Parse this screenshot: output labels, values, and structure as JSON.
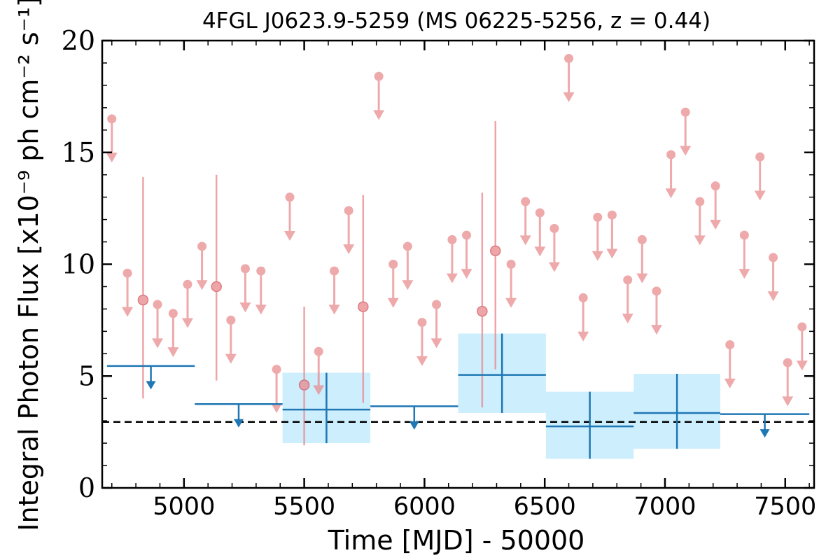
{
  "chart_data": {
    "type": "scatter",
    "title": "4FGL J0623.9-5259 (MS 06225-5256, z = 0.44)",
    "xlabel": "Time [MJD] - 50000",
    "ylabel": "Integral Photon Flux [x10⁻⁹ ph cm⁻² s⁻¹]",
    "xlim": [
      4660,
      7620
    ],
    "ylim": [
      0,
      20
    ],
    "x_ticks": [
      5000,
      5500,
      6000,
      6500,
      7000,
      7500
    ],
    "y_ticks": [
      0,
      5,
      10,
      15,
      20
    ],
    "reference_line": 2.95,
    "colors": {
      "short_bins": "#e8888c",
      "long_bins": "#1f77b4",
      "long_bins_band": "#cdeefd",
      "reference": "#000000"
    },
    "short_bin_upper_limits": [
      {
        "x": 4700,
        "y": 16.5
      },
      {
        "x": 4765,
        "y": 9.6
      },
      {
        "x": 4890,
        "y": 8.2
      },
      {
        "x": 4955,
        "y": 7.8
      },
      {
        "x": 5015,
        "y": 9.1
      },
      {
        "x": 5075,
        "y": 10.8
      },
      {
        "x": 5195,
        "y": 7.5
      },
      {
        "x": 5255,
        "y": 9.8
      },
      {
        "x": 5320,
        "y": 9.7
      },
      {
        "x": 5385,
        "y": 5.3
      },
      {
        "x": 5440,
        "y": 13.0
      },
      {
        "x": 5560,
        "y": 6.1
      },
      {
        "x": 5625,
        "y": 9.7
      },
      {
        "x": 5685,
        "y": 12.4
      },
      {
        "x": 5810,
        "y": 18.4
      },
      {
        "x": 5870,
        "y": 10.0
      },
      {
        "x": 5930,
        "y": 10.8
      },
      {
        "x": 5990,
        "y": 7.4
      },
      {
        "x": 6050,
        "y": 8.2
      },
      {
        "x": 6115,
        "y": 11.1
      },
      {
        "x": 6175,
        "y": 11.3
      },
      {
        "x": 6360,
        "y": 10.0
      },
      {
        "x": 6420,
        "y": 12.8
      },
      {
        "x": 6480,
        "y": 12.3
      },
      {
        "x": 6540,
        "y": 11.6
      },
      {
        "x": 6600,
        "y": 19.2
      },
      {
        "x": 6660,
        "y": 8.5
      },
      {
        "x": 6720,
        "y": 12.1
      },
      {
        "x": 6780,
        "y": 12.2
      },
      {
        "x": 6845,
        "y": 9.3
      },
      {
        "x": 6905,
        "y": 11.1
      },
      {
        "x": 6965,
        "y": 8.8
      },
      {
        "x": 7025,
        "y": 14.9
      },
      {
        "x": 7085,
        "y": 16.8
      },
      {
        "x": 7145,
        "y": 12.8
      },
      {
        "x": 7210,
        "y": 13.5
      },
      {
        "x": 7270,
        "y": 6.4
      },
      {
        "x": 7330,
        "y": 11.3
      },
      {
        "x": 7395,
        "y": 14.8
      },
      {
        "x": 7450,
        "y": 10.3
      },
      {
        "x": 7510,
        "y": 5.6
      },
      {
        "x": 7570,
        "y": 7.2
      }
    ],
    "short_bin_detections": [
      {
        "x": 4830,
        "y": 8.4,
        "y_low": 4.0,
        "y_high": 13.9
      },
      {
        "x": 5135,
        "y": 9.0,
        "y_low": 4.8,
        "y_high": 14.0
      },
      {
        "x": 5500,
        "y": 4.6,
        "y_low": 1.9,
        "y_high": 8.1
      },
      {
        "x": 5745,
        "y": 8.1,
        "y_low": 3.8,
        "y_high": 13.1
      },
      {
        "x": 6240,
        "y": 7.9,
        "y_low": 3.6,
        "y_high": 13.2
      },
      {
        "x": 6295,
        "y": 10.6,
        "y_low": 5.3,
        "y_high": 16.4
      }
    ],
    "long_bin_upper_limits": [
      {
        "x_start": 4680,
        "x_end": 5045,
        "y": 5.45
      },
      {
        "x_start": 5045,
        "x_end": 5410,
        "y": 3.75
      },
      {
        "x_start": 5775,
        "x_end": 6140,
        "y": 3.65
      },
      {
        "x_start": 7230,
        "x_end": 7600,
        "y": 3.3
      }
    ],
    "long_bin_detections": [
      {
        "x_start": 5410,
        "x_end": 5775,
        "y": 3.5,
        "y_low": 2.0,
        "y_high": 5.15
      },
      {
        "x_start": 6140,
        "x_end": 6505,
        "y": 5.05,
        "y_low": 3.35,
        "y_high": 6.9
      },
      {
        "x_start": 6505,
        "x_end": 6870,
        "y": 2.75,
        "y_low": 1.3,
        "y_high": 4.3
      },
      {
        "x_start": 6870,
        "x_end": 7230,
        "y": 3.35,
        "y_low": 1.75,
        "y_high": 5.1
      }
    ]
  }
}
